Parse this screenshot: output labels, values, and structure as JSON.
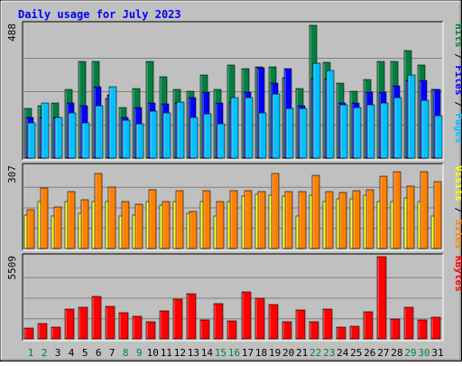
{
  "chart_data": {
    "type": "bar",
    "title": "Daily usage for July 2023",
    "categories": [
      "1",
      "2",
      "3",
      "4",
      "5",
      "6",
      "7",
      "8",
      "9",
      "10",
      "11",
      "12",
      "13",
      "14",
      "15",
      "16",
      "17",
      "18",
      "19",
      "20",
      "21",
      "22",
      "23",
      "24",
      "25",
      "26",
      "27",
      "28",
      "29",
      "30",
      "31"
    ],
    "weekend_days": [
      "1",
      "2",
      "8",
      "9",
      "15",
      "16",
      "22",
      "23",
      "29",
      "30"
    ],
    "panels": [
      {
        "name": "top",
        "ylim": [
          0,
          488
        ],
        "max_tick_label": "488",
        "axis_labels": [
          "Pages",
          "Files",
          "Hits"
        ],
        "series": [
          {
            "name": "Hits",
            "color": "#008040",
            "values": [
              181,
              192,
              202,
              250,
              352,
              352,
              216,
              184,
              255,
              352,
              298,
              252,
              243,
              303,
              250,
              338,
              325,
              333,
              333,
              292,
              253,
              485,
              350,
              273,
              245,
              286,
              353,
              352,
              394,
              338,
              250
            ]
          },
          {
            "name": "Files",
            "color": "#0000ff",
            "values": [
              150,
              150,
              150,
              200,
              190,
              260,
              230,
              150,
              184,
              200,
              198,
              200,
              220,
              240,
              200,
              205,
              240,
              330,
              275,
              325,
              190,
              290,
              290,
              200,
              200,
              240,
              240,
              265,
              283,
              283,
              250
            ]
          },
          {
            "name": "Pages",
            "color": "#00c0ff",
            "values": [
              130,
              200,
              150,
              165,
              130,
              190,
              260,
              140,
              125,
              170,
              165,
              205,
              150,
              160,
              125,
              220,
              220,
              165,
              235,
              180,
              180,
              345,
              320,
              195,
              185,
              195,
              200,
              220,
              305,
              210,
              155
            ]
          }
        ]
      },
      {
        "name": "middle",
        "ylim": [
          0,
          307
        ],
        "max_tick_label": "307",
        "axis_labels": [
          "Sites",
          "Visits"
        ],
        "series": [
          {
            "name": "Visits",
            "color": "#ffff00",
            "values": [
              125,
              176,
              122,
              176,
              132,
              176,
              176,
              120,
              126,
              176,
              161,
              176,
              131,
              176,
              122,
              176,
              196,
              203,
              200,
              196,
              122,
              199,
              176,
              185,
              187,
              199,
              176,
              176,
              189,
              176,
              122
            ]
          },
          {
            "name": "Sites",
            "color": "#ff8000",
            "values": [
              144,
              227,
              155,
              214,
              182,
              280,
              229,
              175,
              166,
              220,
              176,
              217,
              140,
              216,
              175,
              216,
              215,
              212,
              280,
              212,
              214,
              272,
              214,
              209,
              217,
              219,
              271,
              288,
              232,
              288,
              250
            ]
          }
        ]
      },
      {
        "name": "bottom",
        "ylim": [
          0,
          5509
        ],
        "max_tick_label": "5509",
        "axis_labels": [
          "KBytes"
        ],
        "series": [
          {
            "name": "KBytes",
            "color": "#ff0000",
            "values": [
              701,
              1036,
              800,
              1983,
              2127,
              2870,
              2178,
              1746,
              1539,
              1166,
              1896,
              2660,
              3031,
              1285,
              2356,
              1191,
              3161,
              2750,
              2292,
              1176,
              1923,
              1155,
              2011,
              777,
              870,
              1812,
              5509,
              1341,
              2127,
              1299,
              1426
            ]
          }
        ]
      }
    ]
  }
}
